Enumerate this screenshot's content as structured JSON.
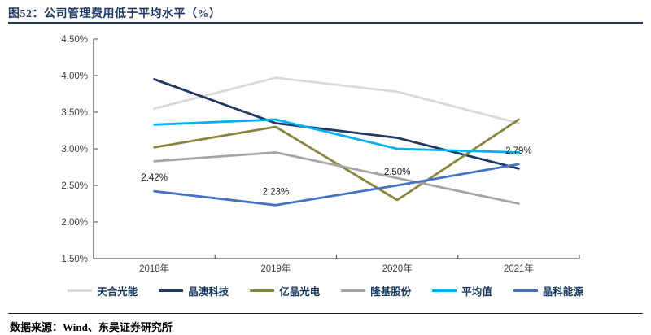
{
  "header": {
    "title": "图52：公司管理费用低于平均水平（%）"
  },
  "footer": {
    "source": "数据来源：Wind、东吴证券研究所"
  },
  "chart_data": {
    "type": "line",
    "title": "公司管理费用低于平均水平（%）",
    "categories": [
      "2018年",
      "2019年",
      "2020年",
      "2021年"
    ],
    "xlabel": "",
    "ylabel": "",
    "ylim": [
      1.5,
      4.5
    ],
    "y_ticks": [
      "4.50%",
      "4.00%",
      "3.50%",
      "3.00%",
      "2.50%",
      "2.00%",
      "1.50%"
    ],
    "grid": false,
    "legend_position": "bottom",
    "axis_color": "#595959",
    "series": [
      {
        "name": "天合光能",
        "color": "#d9d9d9",
        "values": [
          3.55,
          3.97,
          3.78,
          3.35
        ]
      },
      {
        "name": "晶澳科技",
        "color": "#1f3864",
        "values": [
          3.95,
          3.35,
          3.15,
          2.73
        ]
      },
      {
        "name": "亿晶光电",
        "color": "#8a8443",
        "values": [
          3.02,
          3.3,
          2.3,
          3.4
        ]
      },
      {
        "name": "隆基股份",
        "color": "#a5a5a5",
        "values": [
          2.83,
          2.95,
          2.6,
          2.25
        ]
      },
      {
        "name": "平均值",
        "color": "#00b0f0",
        "values": [
          3.33,
          3.4,
          3.0,
          2.95
        ]
      },
      {
        "name": "晶科能源",
        "color": "#4472c4",
        "values": [
          2.42,
          2.23,
          2.5,
          2.79
        ],
        "data_labels": [
          "2.42%",
          "2.23%",
          "2.50%",
          "2.79%"
        ]
      }
    ]
  }
}
